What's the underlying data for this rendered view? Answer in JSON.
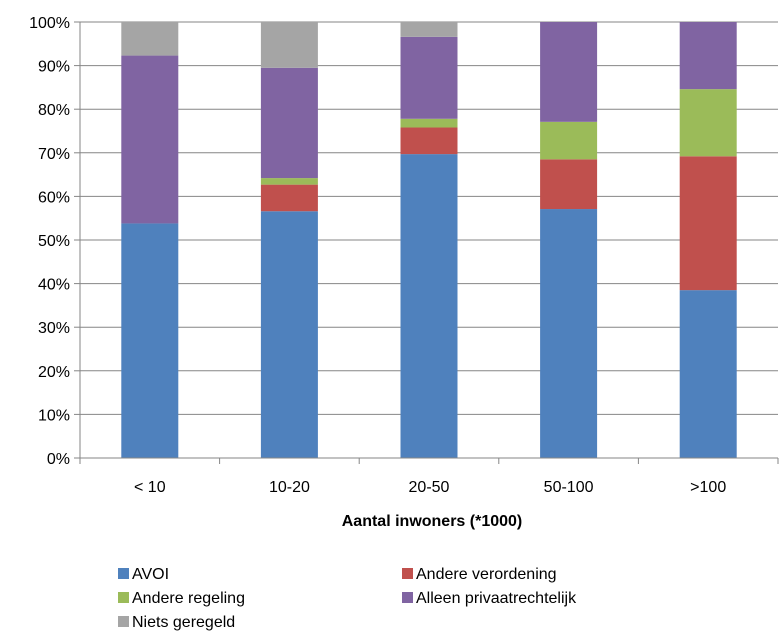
{
  "chart_data": {
    "type": "bar",
    "stacked": true,
    "percent_stacked": true,
    "categories": [
      "< 10",
      "10-20",
      "20-50",
      "50-100",
      ">100"
    ],
    "series": [
      {
        "name": "AVOI",
        "color": "#4F81BD",
        "values": [
          53.8,
          56.6,
          69.7,
          57.1,
          38.5
        ]
      },
      {
        "name": "Andere verordening",
        "color": "#C0504D",
        "values": [
          0,
          6.1,
          6.1,
          11.4,
          30.7
        ]
      },
      {
        "name": "Andere regeling",
        "color": "#9BBB59",
        "values": [
          0,
          1.5,
          2.0,
          8.6,
          15.4
        ]
      },
      {
        "name": "Alleen privaatrechtelijk",
        "color": "#8064A2",
        "values": [
          38.5,
          25.3,
          18.8,
          22.9,
          15.4
        ]
      },
      {
        "name": "Niets geregeld",
        "color": "#A5A5A5",
        "values": [
          7.7,
          10.5,
          3.4,
          0,
          0
        ]
      }
    ],
    "yticks": [
      "0%",
      "10%",
      "20%",
      "30%",
      "40%",
      "50%",
      "60%",
      "70%",
      "80%",
      "90%",
      "100%"
    ],
    "xlabel": "Aantal inwoners (*1000)",
    "ylabel": "",
    "ylim": [
      0,
      100
    ],
    "grid": true,
    "legend_position": "bottom"
  }
}
